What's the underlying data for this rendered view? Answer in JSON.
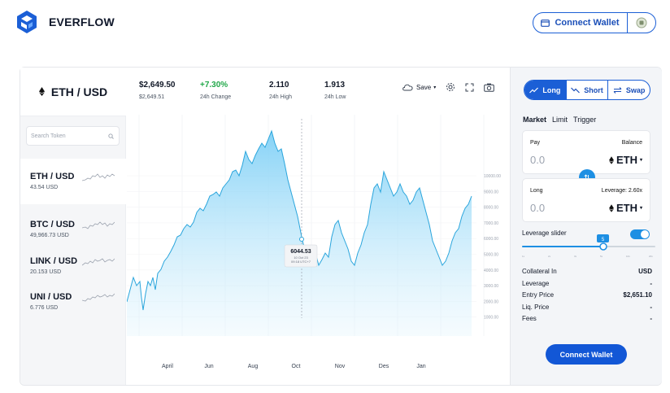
{
  "brand": {
    "name": "EVERFLOW"
  },
  "header": {
    "connect_wallet": "Connect Wallet"
  },
  "pair": {
    "title": "ETH / USD"
  },
  "search": {
    "placeholder": "Search Token"
  },
  "tokens": [
    {
      "name": "ETH / USD",
      "price": "43.54 USD"
    },
    {
      "name": "BTC / USD",
      "price": "49,966.73 USD"
    },
    {
      "name": "LINK / USD",
      "price": "20.153 USD"
    },
    {
      "name": "UNI / USD",
      "price": "6.776 USD"
    }
  ],
  "stats": {
    "price": "$2,649.50",
    "price_sub": "$2,649.51",
    "change": "+7.30%",
    "change_label": "24h Change",
    "high": "2.110",
    "high_label": "24h High",
    "low": "1.913",
    "low_label": "24h Low"
  },
  "toolbar": {
    "save": "Save"
  },
  "chart_data": {
    "type": "area",
    "x_ticks": [
      "April",
      "Jun",
      "Aug",
      "Oct",
      "Nov",
      "Des",
      "Jan"
    ],
    "y_ticks": [
      "10000.00",
      "9000.00",
      "8000.00",
      "7000.00",
      "6000.00",
      "5000.00",
      "4000.00",
      "3000.00",
      "2000.00",
      "1000.00"
    ],
    "tooltip": {
      "value": "6044.53",
      "line1": "10 Oct 23",
      "line2": "09:18 UTC+7"
    },
    "color": "#40b8ec"
  },
  "trade": {
    "tabs": [
      "Long",
      "Short",
      "Swap"
    ],
    "order_types": [
      "Market",
      "Limit",
      "Trigger"
    ],
    "pay_label": "Pay",
    "balance_label": "Balance",
    "pay_value": "0.0",
    "pay_asset": "ETH",
    "long_label": "Long",
    "leverage_label": "Leverage: 2.60x",
    "long_value": "0.0",
    "long_asset": "ETH",
    "leverage_slider_label": "Leverage slider",
    "leverage_value": "5",
    "rows": [
      {
        "k": "Collateral In",
        "v": "USD"
      },
      {
        "k": "Leverage",
        "v": "-"
      },
      {
        "k": "Entry Price",
        "v": "$2,651.10"
      },
      {
        "k": "Liq. Price",
        "v": "-"
      },
      {
        "k": "Fees",
        "v": "-"
      }
    ],
    "connect_wallet": "Connect Wallet"
  }
}
